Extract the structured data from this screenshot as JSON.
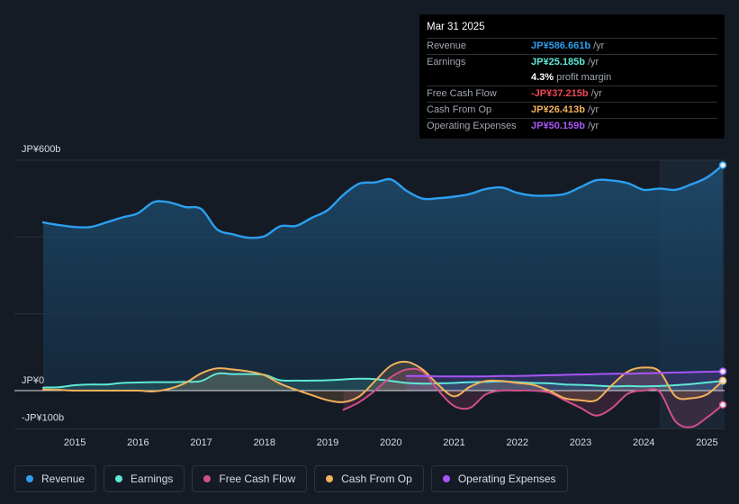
{
  "tooltip": {
    "date": "Mar 31 2025",
    "rows": [
      {
        "label": "Revenue",
        "value": "JP¥586.661b",
        "unit": "/yr",
        "color": "#2c9ff0"
      },
      {
        "label": "Earnings",
        "value": "JP¥25.185b",
        "unit": "/yr",
        "color": "#5ee8d6"
      },
      {
        "label": "",
        "value": "4.3%",
        "unit": "profit margin",
        "color": "#ffffff"
      },
      {
        "label": "Free Cash Flow",
        "value": "-JP¥37.215b",
        "unit": "/yr",
        "color": "#ef4655"
      },
      {
        "label": "Cash From Op",
        "value": "JP¥26.413b",
        "unit": "/yr",
        "color": "#f2b15b"
      },
      {
        "label": "Operating Expenses",
        "value": "JP¥50.159b",
        "unit": "/yr",
        "color": "#a855f7"
      }
    ]
  },
  "legend": [
    {
      "label": "Revenue",
      "color": "#2c9ff0"
    },
    {
      "label": "Earnings",
      "color": "#5ee8d6"
    },
    {
      "label": "Free Cash Flow",
      "color": "#d14f8a"
    },
    {
      "label": "Cash From Op",
      "color": "#f2b15b"
    },
    {
      "label": "Operating Expenses",
      "color": "#a855f7"
    }
  ],
  "chart_data": {
    "type": "line",
    "title": "",
    "y_unit": "JP¥ billions",
    "ylim": [
      -100,
      600
    ],
    "y_tick_labels": [
      {
        "value": 600,
        "label": "JP¥600b"
      },
      {
        "value": 0,
        "label": "JP¥0"
      },
      {
        "value": -100,
        "label": "-JP¥100b"
      }
    ],
    "x_tick_labels": [
      "2015",
      "2016",
      "2017",
      "2018",
      "2019",
      "2020",
      "2021",
      "2022",
      "2023",
      "2024",
      "2025"
    ],
    "x_tick_values": [
      2015,
      2016,
      2017,
      2018,
      2019,
      2020,
      2021,
      2022,
      2023,
      2024,
      2025
    ],
    "xlim": [
      2014.5,
      2025.25
    ],
    "highlight_from": 2024.25,
    "series": [
      {
        "name": "Revenue",
        "color": "#2c9ff0",
        "area": true,
        "x": [
          2014.5,
          2014.75,
          2015,
          2015.25,
          2015.5,
          2015.75,
          2016,
          2016.25,
          2016.5,
          2016.75,
          2017,
          2017.25,
          2017.5,
          2017.75,
          2018,
          2018.25,
          2018.5,
          2018.75,
          2019,
          2019.25,
          2019.5,
          2019.75,
          2020,
          2020.25,
          2020.5,
          2020.75,
          2021,
          2021.25,
          2021.5,
          2021.75,
          2022,
          2022.25,
          2022.5,
          2022.75,
          2023,
          2023.25,
          2023.5,
          2023.75,
          2024,
          2024.25,
          2024.5,
          2024.75,
          2025,
          2025.25
        ],
        "values": [
          438,
          431,
          426,
          426,
          438,
          451,
          462,
          491,
          490,
          478,
          473,
          420,
          407,
          398,
          402,
          428,
          429,
          450,
          470,
          510,
          539,
          542,
          550,
          520,
          500,
          501,
          505,
          512,
          525,
          529,
          515,
          508,
          508,
          512,
          530,
          548,
          547,
          540,
          523,
          526,
          523,
          537,
          555,
          587
        ]
      },
      {
        "name": "Earnings",
        "color": "#5ee8d6",
        "x": [
          2014.5,
          2014.75,
          2015,
          2015.25,
          2015.5,
          2015.75,
          2016,
          2016.25,
          2016.5,
          2016.75,
          2017,
          2017.25,
          2017.5,
          2017.75,
          2018,
          2018.25,
          2018.5,
          2018.75,
          2019,
          2019.25,
          2019.5,
          2019.75,
          2020,
          2020.25,
          2020.5,
          2020.75,
          2021,
          2021.25,
          2021.5,
          2021.75,
          2022,
          2022.25,
          2022.5,
          2022.75,
          2023,
          2023.25,
          2023.5,
          2023.75,
          2024,
          2024.25,
          2024.5,
          2024.75,
          2025,
          2025.25
        ],
        "values": [
          8,
          9,
          14,
          16,
          16,
          20,
          21,
          22,
          22,
          23,
          25,
          44,
          43,
          43,
          41,
          27,
          26,
          26,
          27,
          29,
          31,
          30,
          25,
          20,
          18,
          19,
          20,
          22,
          23,
          24,
          22,
          20,
          19,
          16,
          15,
          13,
          11,
          12,
          11,
          12,
          14,
          17,
          21,
          25
        ]
      },
      {
        "name": "Free Cash Flow",
        "color": "#d14f8a",
        "x": [
          2019.25,
          2019.5,
          2019.75,
          2020,
          2020.25,
          2020.5,
          2020.75,
          2021,
          2021.25,
          2021.5,
          2021.75,
          2022,
          2022.25,
          2022.5,
          2022.75,
          2023,
          2023.25,
          2023.5,
          2023.75,
          2024,
          2024.25,
          2024.5,
          2024.75,
          2025,
          2025.25
        ],
        "values": [
          -50,
          -30,
          0,
          35,
          55,
          50,
          0,
          -40,
          -45,
          -10,
          0,
          0,
          0,
          -5,
          -25,
          -45,
          -65,
          -45,
          -8,
          0,
          -3,
          -80,
          -95,
          -70,
          -37
        ]
      },
      {
        "name": "Cash From Op",
        "color": "#f2b15b",
        "x": [
          2014.5,
          2014.75,
          2015,
          2015.25,
          2015.5,
          2015.75,
          2016,
          2016.25,
          2016.5,
          2016.75,
          2017,
          2017.25,
          2017.5,
          2017.75,
          2018,
          2018.25,
          2018.5,
          2018.75,
          2019,
          2019.25,
          2019.5,
          2019.75,
          2020,
          2020.25,
          2020.5,
          2020.75,
          2021,
          2021.25,
          2021.5,
          2021.75,
          2022,
          2022.25,
          2022.5,
          2022.75,
          2023,
          2023.25,
          2023.5,
          2023.75,
          2024,
          2024.25,
          2024.5,
          2024.75,
          2025,
          2025.25
        ],
        "values": [
          3,
          2,
          0,
          0,
          0,
          0,
          0,
          -2,
          5,
          20,
          45,
          58,
          55,
          50,
          40,
          18,
          2,
          -12,
          -25,
          -30,
          -15,
          25,
          65,
          75,
          55,
          15,
          -15,
          10,
          25,
          25,
          20,
          15,
          0,
          -20,
          -25,
          -25,
          15,
          50,
          60,
          50,
          -15,
          -20,
          -10,
          26
        ]
      },
      {
        "name": "Operating Expenses",
        "color": "#a855f7",
        "x": [
          2020.25,
          2020.5,
          2020.75,
          2021,
          2021.25,
          2021.5,
          2021.75,
          2022,
          2022.25,
          2022.5,
          2022.75,
          2023,
          2023.25,
          2023.5,
          2023.75,
          2024,
          2024.25,
          2024.5,
          2024.75,
          2025,
          2025.25
        ],
        "values": [
          38,
          38,
          37,
          37,
          37,
          37,
          38,
          38,
          39,
          40,
          41,
          42,
          43,
          44,
          44,
          45,
          46,
          47,
          48,
          49,
          50
        ]
      }
    ]
  }
}
